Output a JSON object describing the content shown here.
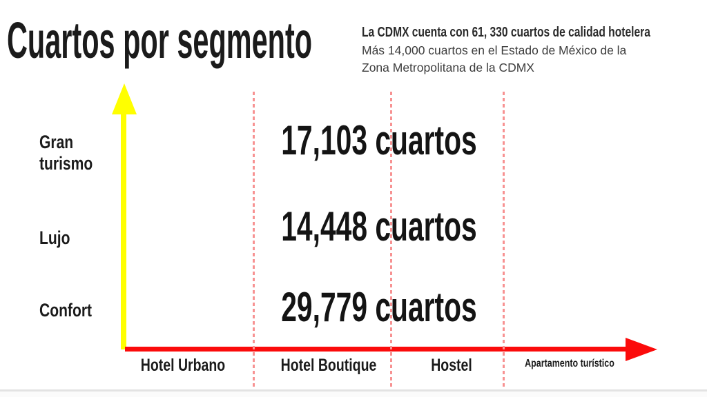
{
  "slide": {
    "title": "Cuartos por segmento",
    "note": {
      "line1": "La CDMX cuenta con 61, 330 cuartos de calidad hotelera",
      "line2": "Más 14,000 cuartos en el Estado de México de la Zona Metropolitana de la CDMX"
    }
  },
  "chart_data": {
    "type": "table",
    "title": "Cuartos por segmento",
    "rows": [
      "Gran turismo",
      "Lujo",
      "Confort"
    ],
    "columns": [
      "Hotel Urbano",
      "Hotel Boutique",
      "Hostel",
      "Apartamento turístico"
    ],
    "values": [
      {
        "segment": "Gran turismo",
        "cuartos": 17103,
        "label": "17,103 cuartos"
      },
      {
        "segment": "Lujo",
        "cuartos": 14448,
        "label": "14,448 cuartos"
      },
      {
        "segment": "Confort",
        "cuartos": 29779,
        "label": "29,779 cuartos"
      }
    ],
    "annotations": [
      "La CDMX cuenta con 61, 330 cuartos de calidad hotelera",
      "Más 14,000 cuartos en el Estado de México de la Zona Metropolitana de la CDMX"
    ],
    "axes": {
      "y_axis_color": "#ffff00",
      "x_axis_color": "#fb0b0b",
      "divider_color": "#f79292",
      "y_axis_direction": "up",
      "x_axis_direction": "right"
    }
  }
}
